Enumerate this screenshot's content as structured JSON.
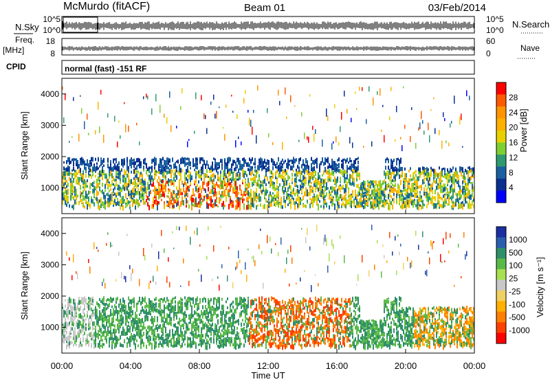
{
  "header": {
    "station": "McMurdo (fitACF)",
    "beam": "Beam 01",
    "date": "03/Feb/2014"
  },
  "top_panels": {
    "nsky_label": "N.Sky",
    "nsearch_label": "N.Search",
    "noise_ticks_left": [
      "10^5",
      "10^0"
    ],
    "noise_ticks_right": [
      "10^5",
      "10^0"
    ],
    "freq_label_1": "Freq.",
    "freq_label_2": "[MHz]",
    "freq_ticks": [
      "18",
      "8"
    ],
    "nave_label": "Nave",
    "nave_ticks": [
      "60",
      "0"
    ],
    "cpid_label": "CPID",
    "cpid_text": "normal (fast) -151 RF"
  },
  "chart_data": [
    {
      "type": "heatmap",
      "name": "power",
      "ylabel": "Slant Range [km]",
      "xlabel": "Time UT",
      "ylim": [
        180,
        4500
      ],
      "x_ticks": [
        "00:00",
        "04:00",
        "08:00",
        "12:00",
        "16:00",
        "20:00",
        "00:00"
      ],
      "y_ticks": [
        "1000",
        "2000",
        "3000",
        "4000"
      ],
      "colorbar": {
        "label": "Power [dB]",
        "ticks": [
          "28",
          "24",
          "20",
          "16",
          "12",
          "8",
          "4"
        ],
        "colors": [
          "#ff0000",
          "#ff5a00",
          "#ff9400",
          "#ffb000",
          "#e8d000",
          "#7fcf30",
          "#2f9a70",
          "#1a5fa0",
          "#0a3090",
          "#0000ff"
        ]
      }
    },
    {
      "type": "heatmap",
      "name": "velocity",
      "ylabel": "Slant Range [km]",
      "xlabel": "Time UT",
      "ylim": [
        180,
        4500
      ],
      "x_ticks": [
        "00:00",
        "04:00",
        "08:00",
        "12:00",
        "16:00",
        "20:00",
        "00:00"
      ],
      "y_ticks": [
        "1000",
        "2000",
        "3000",
        "4000"
      ],
      "colorbar": {
        "label": "Velocity [m s⁻¹]",
        "ticks": [
          "1000",
          "500",
          "100",
          "25",
          "-25",
          "-100",
          "-500",
          "-1000"
        ],
        "colors": [
          "#1a2fa0",
          "#2a5fb0",
          "#2f8f6a",
          "#5aba48",
          "#a8e050",
          "#c8c8c8",
          "#f0d060",
          "#ffb000",
          "#ff8000",
          "#ff4000",
          "#ff0000"
        ]
      }
    }
  ]
}
